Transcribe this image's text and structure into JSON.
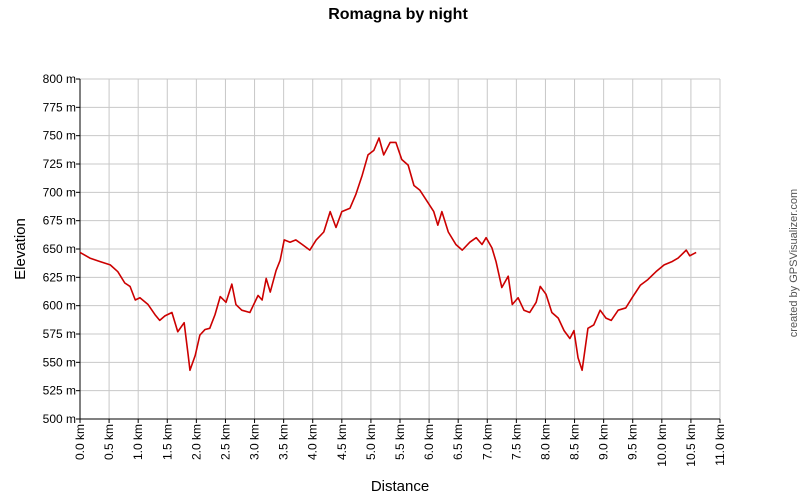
{
  "chart_data": {
    "type": "line",
    "title": "Romagna by night",
    "x_label": "Distance",
    "y_label": "Elevation",
    "credit": "created by GPSVisualizer.com",
    "color": "#cc0000",
    "grid": true,
    "x": [
      0,
      0.17,
      0.34,
      0.52,
      0.65,
      0.77,
      0.86,
      0.95,
      1.03,
      1.17,
      1.29,
      1.37,
      1.46,
      1.58,
      1.68,
      1.79,
      1.86,
      1.89,
      1.98,
      2.06,
      2.15,
      2.23,
      2.32,
      2.41,
      2.51,
      2.61,
      2.68,
      2.78,
      2.92,
      3.06,
      3.13,
      3.2,
      3.27,
      3.37,
      3.44,
      3.51,
      3.61,
      3.71,
      3.82,
      3.95,
      4.06,
      4.19,
      4.3,
      4.4,
      4.5,
      4.64,
      4.74,
      4.85,
      4.95,
      5.05,
      5.14,
      5.22,
      5.33,
      5.43,
      5.53,
      5.64,
      5.74,
      5.84,
      5.98,
      6.08,
      6.15,
      6.22,
      6.33,
      6.46,
      6.57,
      6.7,
      6.81,
      6.91,
      6.98,
      7.08,
      7.15,
      7.25,
      7.36,
      7.43,
      7.53,
      7.63,
      7.73,
      7.84,
      7.91,
      8.01,
      8.11,
      8.22,
      8.32,
      8.42,
      8.49,
      8.56,
      8.63,
      8.73,
      8.83,
      8.94,
      9.04,
      9.13,
      9.25,
      9.38,
      9.49,
      9.63,
      9.76,
      9.9,
      10.04,
      10.18,
      10.28,
      10.42,
      10.48,
      10.59
    ],
    "values": [
      647,
      642,
      639,
      636,
      630,
      620,
      617,
      605,
      607,
      601,
      592,
      587,
      591,
      594,
      577,
      585,
      556,
      543,
      556,
      574,
      579,
      580,
      592,
      608,
      603,
      619,
      601,
      596,
      594,
      609,
      605,
      624,
      612,
      631,
      640,
      658,
      656,
      658,
      654,
      649,
      658,
      665,
      683,
      669,
      683,
      686,
      698,
      715,
      733,
      737,
      748,
      733,
      744,
      744,
      729,
      724,
      706,
      702,
      691,
      683,
      671,
      683,
      665,
      654,
      649,
      656,
      660,
      654,
      660,
      651,
      639,
      616,
      626,
      601,
      607,
      596,
      594,
      603,
      617,
      610,
      594,
      589,
      578,
      571,
      578,
      554,
      543,
      580,
      583,
      596,
      589,
      587,
      596,
      598,
      607,
      618,
      623,
      630,
      636,
      639,
      642,
      649,
      644,
      647
    ],
    "xlim": [
      0,
      11
    ],
    "ylim": [
      500,
      800
    ],
    "xticks": [
      {
        "value": 0,
        "label": "0.0 km"
      },
      {
        "value": 0.5,
        "label": "0.5 km"
      },
      {
        "value": 1,
        "label": "1.0 km"
      },
      {
        "value": 1.5,
        "label": "1.5 km"
      },
      {
        "value": 2,
        "label": "2.0 km"
      },
      {
        "value": 2.5,
        "label": "2.5 km"
      },
      {
        "value": 3,
        "label": "3.0 km"
      },
      {
        "value": 3.5,
        "label": "3.5 km"
      },
      {
        "value": 4,
        "label": "4.0 km"
      },
      {
        "value": 4.5,
        "label": "4.5 km"
      },
      {
        "value": 5,
        "label": "5.0 km"
      },
      {
        "value": 5.5,
        "label": "5.5 km"
      },
      {
        "value": 6,
        "label": "6.0 km"
      },
      {
        "value": 6.5,
        "label": "6.5 km"
      },
      {
        "value": 7,
        "label": "7.0 km"
      },
      {
        "value": 7.5,
        "label": "7.5 km"
      },
      {
        "value": 8,
        "label": "8.0 km"
      },
      {
        "value": 8.5,
        "label": "8.5 km"
      },
      {
        "value": 9,
        "label": "9.0 km"
      },
      {
        "value": 9.5,
        "label": "9.5 km"
      },
      {
        "value": 10,
        "label": "10.0 km"
      },
      {
        "value": 10.5,
        "label": "10.5 km"
      },
      {
        "value": 11,
        "label": "11.0 km"
      }
    ],
    "yticks": [
      {
        "value": 500,
        "label": "500 m"
      },
      {
        "value": 525,
        "label": "525 m"
      },
      {
        "value": 550,
        "label": "550 m"
      },
      {
        "value": 575,
        "label": "575 m"
      },
      {
        "value": 600,
        "label": "600 m"
      },
      {
        "value": 625,
        "label": "625 m"
      },
      {
        "value": 650,
        "label": "650 m"
      },
      {
        "value": 675,
        "label": "675 m"
      },
      {
        "value": 700,
        "label": "700 m"
      },
      {
        "value": 725,
        "label": "725 m"
      },
      {
        "value": 750,
        "label": "750 m"
      },
      {
        "value": 775,
        "label": "775 m"
      },
      {
        "value": 800,
        "label": "800 m"
      }
    ]
  }
}
